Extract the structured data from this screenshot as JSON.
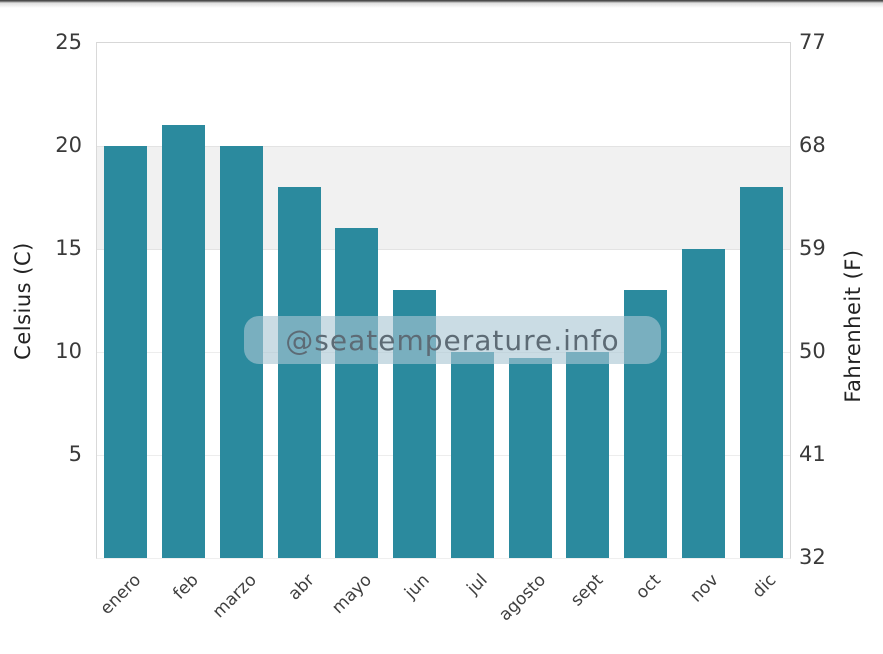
{
  "watermark": {
    "text": "@seatemperature.info"
  },
  "axes": {
    "left_title": "Celsius (C)",
    "right_title": "Fahrenheit (F)"
  },
  "chart_data": {
    "type": "bar",
    "categories": [
      "enero",
      "feb",
      "marzo",
      "abr",
      "mayo",
      "jun",
      "jul",
      "agosto",
      "sept",
      "oct",
      "nov",
      "dic"
    ],
    "values": [
      20,
      21,
      20,
      18,
      16,
      13,
      10,
      9.7,
      10,
      13,
      15,
      18
    ],
    "title": "",
    "xlabel": "",
    "ylabel_left": "Celsius (C)",
    "ylabel_right": "Fahrenheit (F)",
    "ylim_celsius": [
      0,
      25
    ],
    "left_tick_labels": [
      25,
      20,
      15,
      10,
      5
    ],
    "right_tick_labels": [
      77,
      68,
      59,
      50,
      41,
      32
    ],
    "highlight_band_celsius": [
      15,
      20
    ],
    "grid": true,
    "legend": "none",
    "bar_color": "#2b8a9e",
    "band_color": "#f1f1f1",
    "major_grid_color": "#e3e3e3",
    "minor_grid_color": "#ededed",
    "tick_label_color": "#3a3a3a",
    "watermark_text": "@seatemperature.info"
  }
}
